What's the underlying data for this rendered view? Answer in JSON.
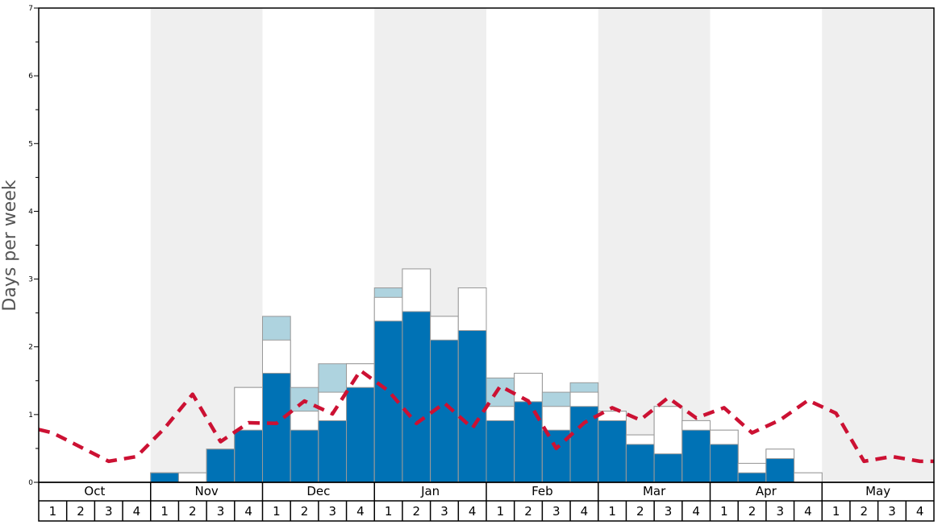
{
  "chart_data": {
    "type": "bar",
    "ylabel": "Days per week",
    "ylim": [
      0,
      7
    ],
    "y_ticks": [
      "0",
      "1",
      "2",
      "3",
      "4",
      "5",
      "6",
      "7"
    ],
    "months": [
      "Oct",
      "Nov",
      "Dec",
      "Jan",
      "Feb",
      "Mar",
      "Apr",
      "May"
    ],
    "weeks": [
      "1",
      "2",
      "3",
      "4"
    ],
    "shaded_months": [
      "Nov",
      "Jan",
      "Mar",
      "May"
    ],
    "colors": {
      "bar_dark": "#0072b5",
      "bar_light": "#aed3df",
      "bar_white": "#ffffff",
      "bar_edge": "#999999",
      "line": "#cc1133",
      "shade": "#efefef"
    },
    "series": [
      {
        "values": [
          0,
          0,
          0,
          0,
          0.14,
          0,
          0.49,
          0.77,
          1.61,
          0.77,
          0.91,
          1.4,
          2.38,
          2.52,
          2.1,
          2.24,
          0.91,
          1.19,
          0.77,
          1.12,
          0.91,
          0.56,
          0.42,
          0.77,
          0.56,
          0.14,
          0.35,
          0,
          0,
          0,
          0,
          0
        ]
      },
      {
        "values": [
          0,
          0,
          0,
          0,
          0.14,
          0.14,
          0.49,
          1.4,
          2.1,
          1.05,
          1.33,
          1.75,
          2.73,
          3.15,
          2.45,
          2.87,
          1.12,
          1.61,
          1.12,
          1.33,
          1.05,
          0.7,
          1.12,
          0.91,
          0.77,
          0.28,
          0.49,
          0.14,
          0,
          0,
          0,
          0
        ]
      },
      {
        "values": [
          0,
          0,
          0,
          0,
          0.14,
          0.14,
          0.49,
          1.4,
          2.45,
          1.4,
          1.75,
          1.75,
          2.87,
          3.15,
          2.45,
          2.87,
          1.54,
          1.61,
          1.33,
          1.47,
          1.05,
          0.7,
          1.12,
          0.91,
          0.77,
          0.28,
          0.49,
          0.14,
          0,
          0,
          0,
          0
        ]
      },
      {
        "values": [
          0.73,
          0.52,
          0.31,
          0.38,
          0.8,
          1.3,
          0.6,
          0.88,
          0.87,
          1.2,
          1.01,
          1.65,
          1.35,
          0.87,
          1.17,
          0.8,
          1.42,
          1.2,
          0.5,
          0.88,
          1.1,
          0.92,
          1.25,
          0.95,
          1.1,
          0.73,
          0.92,
          1.21,
          1.02,
          0.31,
          0.38,
          0.31
        ]
      }
    ]
  }
}
